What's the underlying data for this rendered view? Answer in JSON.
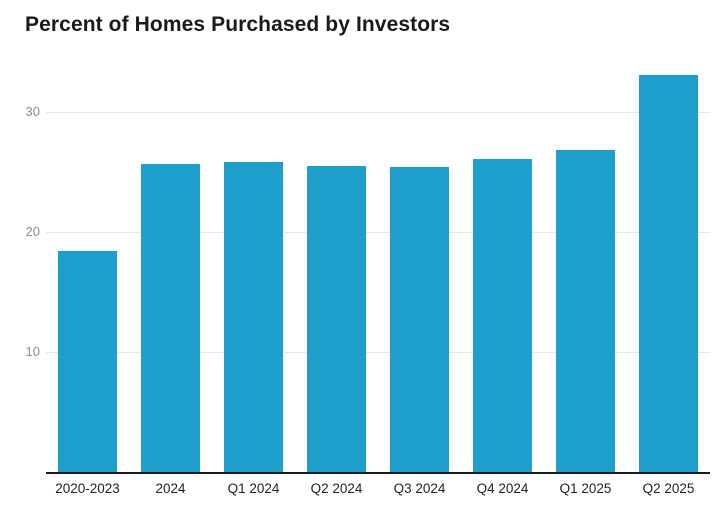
{
  "title": "Percent of Homes Purchased by Investors",
  "colors": {
    "background": "#ffffff",
    "bar": "#1e9fcb",
    "grid": "#e6e6e6",
    "axis_line": "#1a1a1a",
    "y_tick_text": "#8e8e8e",
    "x_tick_text": "#222222",
    "title_text": "#1a1a1a"
  },
  "chart_data": {
    "type": "bar",
    "title": "Percent of Homes Purchased by Investors",
    "categories": [
      "2020-2023",
      "2024",
      "Q1 2024",
      "Q2 2024",
      "Q3 2024",
      "Q4 2024",
      "Q1 2025",
      "Q2 2025"
    ],
    "values": [
      18.4,
      25.7,
      25.8,
      25.5,
      25.4,
      26.1,
      26.8,
      33.1
    ],
    "xlabel": "",
    "ylabel": "",
    "yticks": [
      10,
      20,
      30
    ],
    "ylim": [
      0,
      34.5
    ],
    "grid": true,
    "legend": false,
    "bar_color": "#1e9fcb"
  }
}
